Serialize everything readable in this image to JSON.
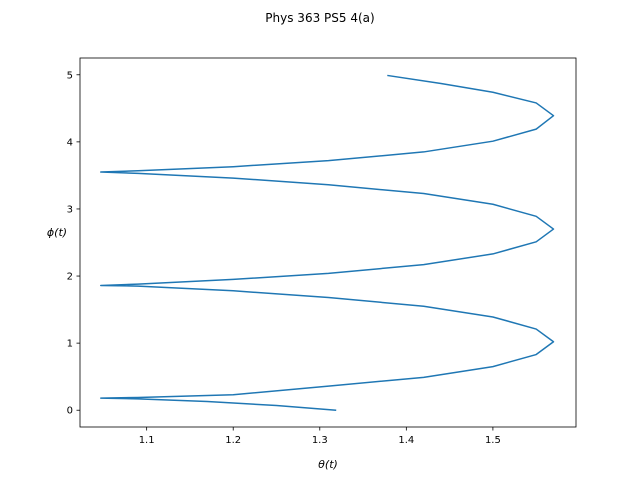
{
  "chart_data": {
    "type": "line",
    "title": "Phys 363 PS5 4(a)",
    "xlabel": "θ(t)",
    "ylabel": "ϕ(t)",
    "xlim": [
      1.023,
      1.596
    ],
    "ylim": [
      -0.25,
      5.25
    ],
    "xticks": [
      1.1,
      1.2,
      1.3,
      1.4,
      1.5
    ],
    "yticks": [
      0,
      1,
      2,
      3,
      4,
      5
    ],
    "grid": false,
    "legend": "none",
    "series": [
      {
        "color": "#1f77b4",
        "points": [
          [
            1.319,
            0.0
          ],
          [
            1.25,
            0.07
          ],
          [
            1.17,
            0.13
          ],
          [
            1.09,
            0.17
          ],
          [
            1.047,
            0.18
          ],
          [
            1.09,
            0.19
          ],
          [
            1.2,
            0.23
          ],
          [
            1.31,
            0.36
          ],
          [
            1.42,
            0.49
          ],
          [
            1.5,
            0.65
          ],
          [
            1.55,
            0.83
          ],
          [
            1.57,
            1.02
          ],
          [
            1.55,
            1.21
          ],
          [
            1.5,
            1.39
          ],
          [
            1.42,
            1.55
          ],
          [
            1.31,
            1.68
          ],
          [
            1.2,
            1.78
          ],
          [
            1.09,
            1.85
          ],
          [
            1.047,
            1.86
          ],
          [
            1.09,
            1.88
          ],
          [
            1.2,
            1.95
          ],
          [
            1.31,
            2.04
          ],
          [
            1.42,
            2.17
          ],
          [
            1.5,
            2.33
          ],
          [
            1.55,
            2.51
          ],
          [
            1.57,
            2.7
          ],
          [
            1.55,
            2.89
          ],
          [
            1.5,
            3.07
          ],
          [
            1.42,
            3.23
          ],
          [
            1.31,
            3.36
          ],
          [
            1.2,
            3.46
          ],
          [
            1.09,
            3.53
          ],
          [
            1.047,
            3.55
          ],
          [
            1.09,
            3.57
          ],
          [
            1.2,
            3.63
          ],
          [
            1.31,
            3.72
          ],
          [
            1.42,
            3.85
          ],
          [
            1.5,
            4.01
          ],
          [
            1.55,
            4.19
          ],
          [
            1.57,
            4.39
          ],
          [
            1.55,
            4.58
          ],
          [
            1.5,
            4.74
          ],
          [
            1.44,
            4.87
          ],
          [
            1.378,
            4.99
          ]
        ]
      }
    ]
  }
}
